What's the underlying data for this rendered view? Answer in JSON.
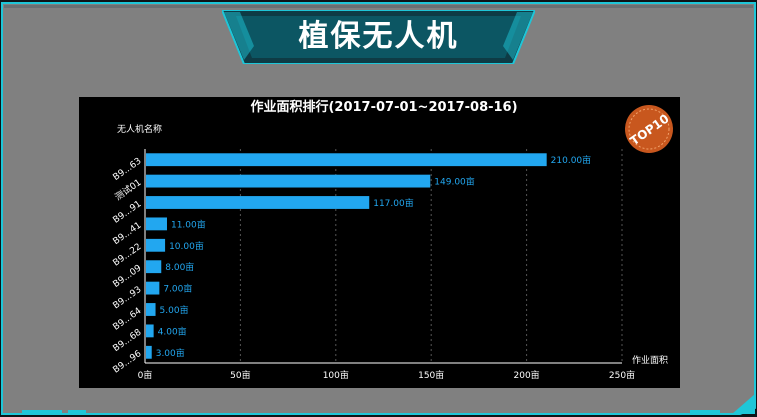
{
  "page": {
    "title": "植保无人机",
    "colors": {
      "accent": "#1ec6d8",
      "frame_gray": "#808080",
      "bar": "#22a7f0",
      "badge": "#c8571e"
    }
  },
  "badge": {
    "text": "TOP10"
  },
  "chart_data": {
    "type": "bar",
    "orientation": "horizontal",
    "title": "作业面积排行(2017-07-01~2017-08-16)",
    "ylabel": "无人机名称",
    "xlabel": "作业面积",
    "categories": [
      "B9...63",
      "测试01",
      "B9...91",
      "B9...41",
      "B9...22",
      "B9...09",
      "B9...93",
      "B9...64",
      "B9...68",
      "B9...96"
    ],
    "values": [
      210,
      149,
      117,
      11,
      10,
      8,
      7,
      5,
      4,
      3
    ],
    "data_labels": [
      "210.00亩",
      "149.00亩",
      "117.00亩",
      "11.00亩",
      "10.00亩",
      "8.00亩",
      "7.00亩",
      "5.00亩",
      "4.00亩",
      "3.00亩"
    ],
    "xlim": [
      0,
      250
    ],
    "x_ticks": [
      0,
      50,
      100,
      150,
      200,
      250
    ],
    "x_tick_labels": [
      "0亩",
      "50亩",
      "100亩",
      "150亩",
      "200亩",
      "250亩"
    ],
    "grid": "vertical dashed",
    "legend": "none"
  }
}
